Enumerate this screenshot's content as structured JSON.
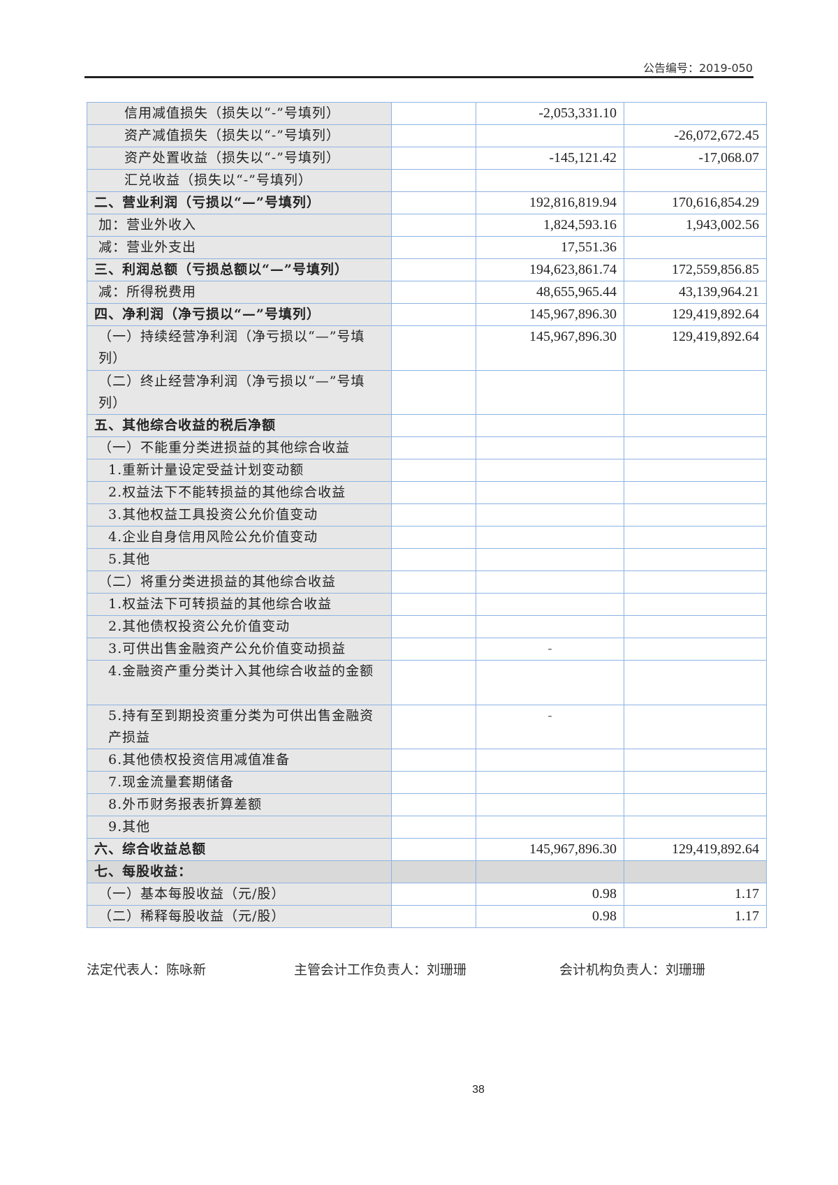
{
  "header": {
    "notice_no": "公告编号：2019-050"
  },
  "rows": [
    {
      "label": "信用减值损失（损失以“-”号填列）",
      "cur": "-2,053,331.10",
      "prev": "",
      "indent": "i1"
    },
    {
      "label": "资产减值损失（损失以“-”号填列）",
      "cur": "",
      "prev": "-26,072,672.45",
      "indent": "i1"
    },
    {
      "label": "资产处置收益（损失以“-”号填列）",
      "cur": "-145,121.42",
      "prev": "-17,068.07",
      "indent": "i1"
    },
    {
      "label": "汇兑收益（损失以“-”号填列）",
      "cur": "",
      "prev": "",
      "indent": "i1"
    },
    {
      "label": "二、营业利润（亏损以“—”号填列）",
      "cur": "192,816,819.94",
      "prev": "170,616,854.29",
      "bold": true
    },
    {
      "label": "加：营业外收入",
      "cur": "1,824,593.16",
      "prev": "1,943,002.56"
    },
    {
      "label": "减：营业外支出",
      "cur": "17,551.36",
      "prev": ""
    },
    {
      "label": "三、利润总额（亏损总额以“—”号填列）",
      "cur": "194,623,861.74",
      "prev": "172,559,856.85",
      "bold": true
    },
    {
      "label": "减：所得税费用",
      "cur": "48,655,965.44",
      "prev": "43,139,964.21"
    },
    {
      "label": "四、净利润（净亏损以“—”号填列）",
      "cur": "145,967,896.30",
      "prev": "129,419,892.64",
      "bold": true
    },
    {
      "label": "（一）持续经营净利润（净亏损以“—”号填列）",
      "cur": "145,967,896.30",
      "prev": "129,419,892.64",
      "double": true
    },
    {
      "label": "（二）终止经营净利润（净亏损以“—”号填列）",
      "cur": "",
      "prev": "",
      "double": true
    },
    {
      "label": "五、其他综合收益的税后净额",
      "cur": "",
      "prev": "",
      "bold": true
    },
    {
      "label": "（一）不能重分类进损益的其他综合收益",
      "cur": "",
      "prev": ""
    },
    {
      "label": "1.重新计量设定受益计划变动额",
      "cur": "",
      "prev": "",
      "indent": "i2"
    },
    {
      "label": "2.权益法下不能转损益的其他综合收益",
      "cur": "",
      "prev": "",
      "indent": "i2"
    },
    {
      "label": "3.其他权益工具投资公允价值变动",
      "cur": "",
      "prev": "",
      "indent": "i2"
    },
    {
      "label": "4.企业自身信用风险公允价值变动",
      "cur": "",
      "prev": "",
      "indent": "i2"
    },
    {
      "label": "5.其他",
      "cur": "",
      "prev": "",
      "indent": "i2"
    },
    {
      "label": "（二）将重分类进损益的其他综合收益",
      "cur": "",
      "prev": ""
    },
    {
      "label": "1.权益法下可转损益的其他综合收益",
      "cur": "",
      "prev": "",
      "indent": "i2"
    },
    {
      "label": "2.其他债权投资公允价值变动",
      "cur": "",
      "prev": "",
      "indent": "i2"
    },
    {
      "label": "3.可供出售金融资产公允价值变动损益",
      "cur": "-",
      "prev": "",
      "indent": "i2",
      "dash": true
    },
    {
      "label": "4.金融资产重分类计入其他综合收益的金额",
      "cur": "",
      "prev": "",
      "indent": "i2",
      "double": true
    },
    {
      "label": "5.持有至到期投资重分类为可供出售金融资产损益",
      "cur": "-",
      "prev": "",
      "indent": "i2",
      "double": true,
      "dash": true
    },
    {
      "label": "6.其他债权投资信用减值准备",
      "cur": "",
      "prev": "",
      "indent": "i2"
    },
    {
      "label": "7.现金流量套期储备",
      "cur": "",
      "prev": "",
      "indent": "i2"
    },
    {
      "label": "8.外币财务报表折算差额",
      "cur": "",
      "prev": "",
      "indent": "i2"
    },
    {
      "label": "9.其他",
      "cur": "",
      "prev": "",
      "indent": "i2"
    },
    {
      "label": "六、综合收益总额",
      "cur": "145,967,896.30",
      "prev": "129,419,892.64",
      "bold": true
    },
    {
      "label": "七、每股收益：",
      "cur": "",
      "prev": "",
      "bold": true,
      "gray": true
    },
    {
      "label": "（一）基本每股收益（元/股）",
      "cur": "0.98",
      "prev": "1.17"
    },
    {
      "label": "（二）稀释每股收益（元/股）",
      "cur": "0.98",
      "prev": "1.17"
    }
  ],
  "signatures": {
    "legal_rep": "法定代表人：陈咏新",
    "accounting_head": "主管会计工作负责人：刘珊珊",
    "accounting_org_head": "会计机构负责人：刘珊珊"
  },
  "page_number": "38",
  "colors": {
    "border": "#8db3e2",
    "label_bg": "#e7e7e7"
  }
}
